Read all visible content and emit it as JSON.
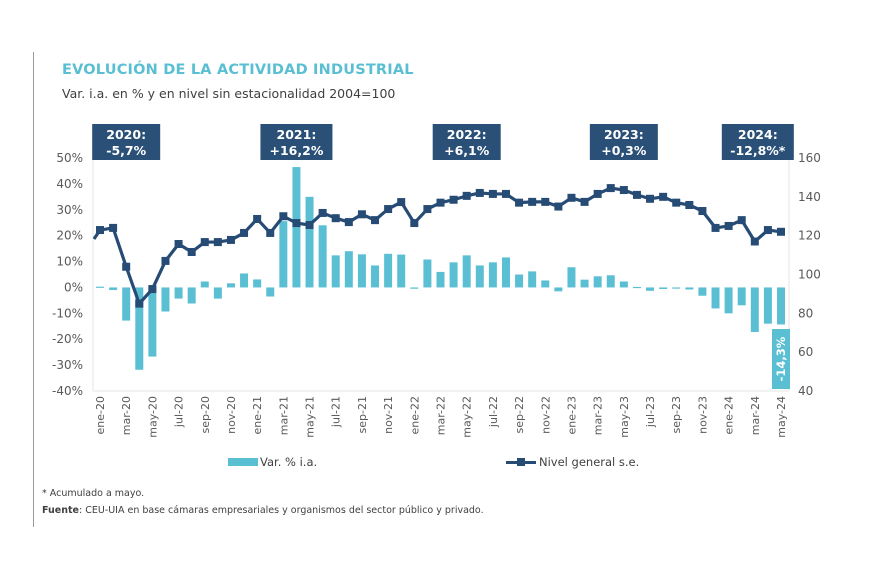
{
  "header": {
    "title": "EVOLUCIÓN DE LA ACTIVIDAD INDUSTRIAL",
    "subtitle": "Var. i.a. en % y en nivel sin estacionalidad 2004=100"
  },
  "colors": {
    "bar": "#5bbfd3",
    "line": "#264b74",
    "annotation_box": "#2a5078",
    "title": "#5bbfd3"
  },
  "annotations": [
    {
      "line1": "2020:",
      "line2": "-5,7%",
      "month_index": 2
    },
    {
      "line1": "2021:",
      "line2": "+16,2%",
      "month_index": 15
    },
    {
      "line1": "2022:",
      "line2": "+6,1%",
      "month_index": 28
    },
    {
      "line1": "2023:",
      "line2": "+0,3%",
      "month_index": 40
    },
    {
      "line1": "2024:",
      "line2": "-12,8%*",
      "month_index": 50
    }
  ],
  "last_bar_label": "-14,3%",
  "legend": {
    "bar_label": "Var. % i.a.",
    "line_label": "Nivel general s.e."
  },
  "footer": {
    "note": "* Acumulado a mayo.",
    "source_label": "Fuente",
    "source_text": ": CEU-UIA en base cámaras empresariales y organismos del sector público y privado."
  },
  "chart_data": {
    "type": "bar+line",
    "title": "EVOLUCIÓN DE LA ACTIVIDAD INDUSTRIAL",
    "subtitle": "Var. i.a. en % y en nivel sin estacionalidad 2004=100",
    "x": [
      "ene-20",
      "feb-20",
      "mar-20",
      "abr-20",
      "may-20",
      "jun-20",
      "jul-20",
      "ago-20",
      "sep-20",
      "oct-20",
      "nov-20",
      "dic-20",
      "ene-21",
      "feb-21",
      "mar-21",
      "abr-21",
      "may-21",
      "jun-21",
      "jul-21",
      "ago-21",
      "sep-21",
      "oct-21",
      "nov-21",
      "dic-21",
      "ene-22",
      "feb-22",
      "mar-22",
      "abr-22",
      "may-22",
      "jun-22",
      "jul-22",
      "ago-22",
      "sep-22",
      "oct-22",
      "nov-22",
      "dic-22",
      "ene-23",
      "feb-23",
      "mar-23",
      "abr-23",
      "may-23",
      "jun-23",
      "jul-23",
      "ago-23",
      "sep-23",
      "oct-23",
      "nov-23",
      "dic-23",
      "ene-24",
      "feb-24",
      "mar-24",
      "abr-24",
      "may-24"
    ],
    "xtick_labels": [
      "ene-20",
      "mar-20",
      "may-20",
      "jul-20",
      "sep-20",
      "nov-20",
      "ene-21",
      "mar-21",
      "may-21",
      "jul-21",
      "sep-21",
      "nov-21",
      "ene-22",
      "mar-22",
      "may-22",
      "jul-22",
      "sep-22",
      "nov-22",
      "ene-23",
      "mar-23",
      "may-23",
      "jul-23",
      "sep-23",
      "nov-23",
      "ene-24",
      "mar-24",
      "may-24"
    ],
    "series": [
      {
        "name": "Var. % i.a.",
        "type": "bar",
        "axis": "left",
        "values": [
          0.3,
          -1.0,
          -12.8,
          -31.8,
          -26.7,
          -9.3,
          -4.3,
          -6.2,
          2.3,
          -4.3,
          1.6,
          5.4,
          3.1,
          -3.5,
          25.6,
          46.5,
          35.0,
          24.0,
          12.4,
          14.0,
          12.8,
          8.5,
          13.0,
          12.7,
          -0.5,
          10.8,
          6.0,
          9.7,
          12.4,
          8.5,
          9.7,
          11.6,
          5.0,
          6.2,
          2.7,
          -1.5,
          7.8,
          3.0,
          4.3,
          4.7,
          2.3,
          0.2,
          -1.3,
          -0.6,
          -0.2,
          -0.8,
          -3.2,
          -8.1,
          -10.0,
          -6.9,
          -17.2,
          -14.0,
          -14.3
        ]
      },
      {
        "name": "Nivel general s.e.",
        "type": "line",
        "axis": "right",
        "values": [
          122.9,
          124.0,
          104.0,
          85.0,
          92.5,
          107.0,
          115.7,
          111.6,
          116.7,
          116.7,
          117.8,
          121.4,
          128.6,
          121.4,
          130.0,
          126.5,
          125.5,
          131.7,
          129.0,
          127.0,
          131.0,
          128.0,
          133.7,
          137.3,
          126.5,
          133.7,
          137.0,
          138.5,
          140.5,
          142.0,
          141.5,
          141.5,
          137.0,
          137.4,
          137.4,
          135.0,
          139.5,
          137.4,
          141.5,
          144.5,
          143.5,
          141.0,
          139.0,
          140.0,
          137.0,
          135.8,
          132.7,
          124.0,
          125.0,
          128.0,
          117.0,
          122.9,
          122.0
        ]
      }
    ],
    "y_left": {
      "min": -40,
      "max": 50,
      "step": 10,
      "tick_labels": [
        "50%",
        "40%",
        "30%",
        "20%",
        "10%",
        "0%",
        "-10%",
        "-20%",
        "-30%",
        "-40%"
      ]
    },
    "y_right": {
      "min": 40,
      "max": 160,
      "step": 20,
      "tick_labels": [
        "160",
        "140",
        "120",
        "100",
        "80",
        "60",
        "40"
      ]
    },
    "grid": false,
    "legend_position": "bottom"
  }
}
